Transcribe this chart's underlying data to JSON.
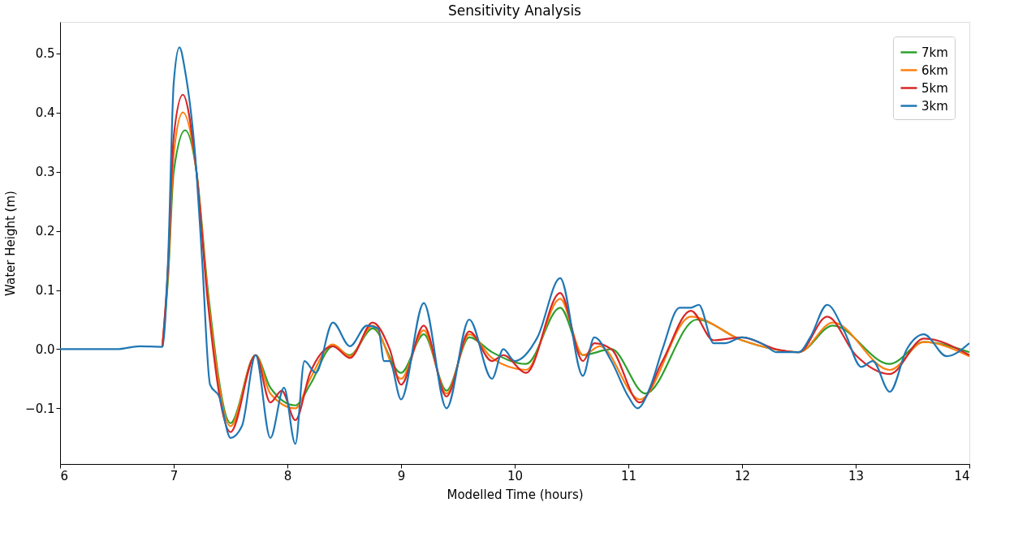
{
  "chart_data": {
    "type": "line",
    "title": "Sensitivity Analysis",
    "xlabel": "Modelled Time (hours)",
    "ylabel": "Water Height (m)",
    "xlim": [
      6,
      14
    ],
    "ylim": [
      -0.194,
      0.553
    ],
    "xticks": [
      6,
      7,
      8,
      9,
      10,
      11,
      12,
      13,
      14
    ],
    "yticks": [
      {
        "value": -0.1,
        "label": "−0.1"
      },
      {
        "value": 0,
        "label": "0.0"
      },
      0.1,
      0.2,
      0.3,
      0.4,
      0.5
    ],
    "grid": false,
    "legend": "top right",
    "marker": "none",
    "line_style": "solid",
    "series": [
      {
        "name": "7km",
        "color": "#2ca02c",
        "x": [
          6.9,
          6.95,
          7.0,
          7.1,
          7.2,
          7.3,
          7.5,
          7.72,
          7.85,
          8.07,
          8.2,
          8.4,
          8.55,
          8.75,
          9.0,
          9.2,
          9.4,
          9.6,
          9.8,
          10.1,
          10.4,
          10.6,
          10.85,
          11.15,
          11.6,
          12.0,
          12.5,
          12.8,
          13.3,
          13.6,
          14.0
        ],
        "values": [
          0.004,
          0.12,
          0.3,
          0.37,
          0.3,
          0.1,
          -0.125,
          -0.01,
          -0.065,
          -0.095,
          -0.06,
          0.005,
          -0.01,
          0.035,
          -0.04,
          0.025,
          -0.07,
          0.02,
          -0.005,
          -0.025,
          0.07,
          -0.01,
          0.0,
          -0.075,
          0.05,
          0.015,
          -0.005,
          0.04,
          -0.025,
          0.012,
          -0.005
        ]
      },
      {
        "name": "6km",
        "color": "#ff7f0e",
        "x": [
          6.9,
          6.95,
          7.0,
          7.08,
          7.2,
          7.3,
          7.5,
          7.72,
          7.85,
          8.07,
          8.2,
          8.4,
          8.55,
          8.75,
          9.0,
          9.2,
          9.4,
          9.6,
          9.8,
          10.1,
          10.4,
          10.6,
          10.75,
          11.1,
          11.55,
          12.0,
          12.5,
          12.8,
          13.3,
          13.6,
          14.0
        ],
        "values": [
          0.004,
          0.13,
          0.33,
          0.4,
          0.3,
          0.09,
          -0.13,
          -0.01,
          -0.075,
          -0.1,
          -0.05,
          0.008,
          -0.012,
          0.04,
          -0.05,
          0.032,
          -0.075,
          0.025,
          -0.015,
          -0.035,
          0.085,
          -0.01,
          0.005,
          -0.085,
          0.055,
          0.015,
          -0.005,
          0.045,
          -0.035,
          0.012,
          -0.012
        ]
      },
      {
        "name": "5km",
        "color": "#d62728",
        "x": [
          6.9,
          6.95,
          7.0,
          7.08,
          7.2,
          7.3,
          7.5,
          7.72,
          7.85,
          7.95,
          8.07,
          8.2,
          8.4,
          8.55,
          8.75,
          8.9,
          9.0,
          9.2,
          9.4,
          9.6,
          9.8,
          9.9,
          10.1,
          10.4,
          10.6,
          10.7,
          10.85,
          11.1,
          11.3,
          11.55,
          11.75,
          12.0,
          12.3,
          12.5,
          12.75,
          13.0,
          13.3,
          13.6,
          14.0
        ],
        "values": [
          0.004,
          0.14,
          0.36,
          0.43,
          0.3,
          0.08,
          -0.14,
          -0.01,
          -0.09,
          -0.07,
          -0.12,
          -0.04,
          0.005,
          -0.015,
          0.045,
          0.0,
          -0.06,
          0.04,
          -0.08,
          0.03,
          -0.02,
          -0.01,
          -0.04,
          0.095,
          -0.02,
          0.01,
          0.0,
          -0.09,
          -0.02,
          0.065,
          0.015,
          0.02,
          0.0,
          -0.005,
          0.055,
          -0.01,
          -0.042,
          0.018,
          -0.01
        ]
      },
      {
        "name": "3km",
        "color": "#1f77b4",
        "x": [
          6,
          6.5,
          6.7,
          6.9,
          6.95,
          7.0,
          7.05,
          7.1,
          7.2,
          7.25,
          7.32,
          7.4,
          7.5,
          7.6,
          7.72,
          7.85,
          7.97,
          8.07,
          8.15,
          8.25,
          8.4,
          8.55,
          8.7,
          8.8,
          8.85,
          8.9,
          9.0,
          9.2,
          9.4,
          9.6,
          9.8,
          9.9,
          10.0,
          10.2,
          10.4,
          10.6,
          10.7,
          10.85,
          11.0,
          11.08,
          11.2,
          11.3,
          11.45,
          11.55,
          11.62,
          11.75,
          11.85,
          12.0,
          12.2,
          12.3,
          12.5,
          12.6,
          12.75,
          12.9,
          13.05,
          13.15,
          13.3,
          13.45,
          13.6,
          13.8,
          14.0
        ],
        "values": [
          0,
          0,
          0.005,
          0.004,
          0.15,
          0.45,
          0.51,
          0.47,
          0.3,
          0.15,
          -0.06,
          -0.08,
          -0.15,
          -0.13,
          -0.01,
          -0.15,
          -0.065,
          -0.16,
          -0.02,
          -0.04,
          0.045,
          0.005,
          0.04,
          0.035,
          -0.02,
          -0.02,
          -0.085,
          0.078,
          -0.1,
          0.05,
          -0.05,
          0.0,
          -0.02,
          0.02,
          0.12,
          -0.045,
          0.02,
          -0.02,
          -0.08,
          -0.1,
          -0.06,
          0.0,
          0.07,
          0.07,
          0.075,
          0.01,
          0.01,
          0.02,
          0.007,
          -0.005,
          -0.005,
          0.02,
          0.075,
          0.03,
          -0.03,
          -0.02,
          -0.072,
          0.0,
          0.025,
          -0.012,
          0.01
        ]
      }
    ]
  }
}
